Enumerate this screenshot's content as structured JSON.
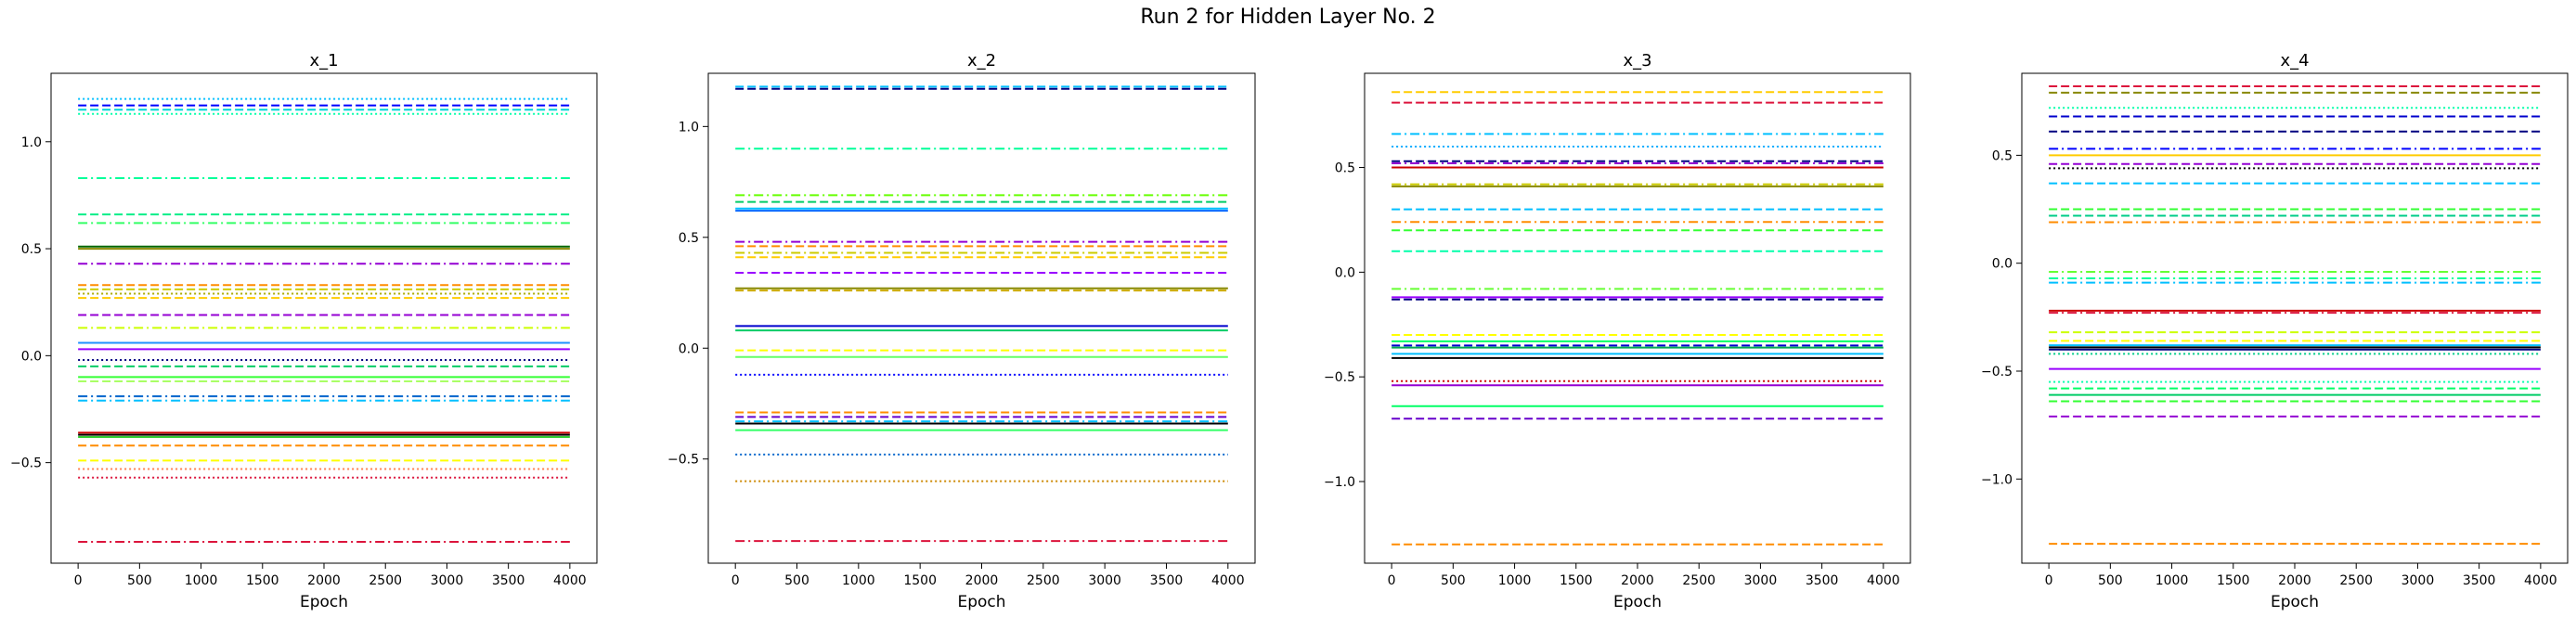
{
  "figure": {
    "title": "Run 2 for Hidden Layer No. 2"
  },
  "chart_data": [
    {
      "type": "line",
      "title": "x_1",
      "xlabel": "Epoch",
      "ylabel": "",
      "xlim": [
        -220,
        4220
      ],
      "ylim": [
        -0.97,
        1.32
      ],
      "xticks": [
        0,
        500,
        1000,
        1500,
        2000,
        2500,
        3000,
        3500,
        4000
      ],
      "yticks": [
        -0.5,
        0.0,
        0.5,
        1.0
      ],
      "ytick_labels": [
        "−0.5",
        "0.0",
        "0.5",
        "1.0"
      ],
      "x_range": [
        0,
        4000
      ],
      "grid": false,
      "series": [
        {
          "value": 1.2,
          "color": "#00bfff",
          "style": "dotted"
        },
        {
          "value": 1.17,
          "color": "#0000ff",
          "style": "dashed"
        },
        {
          "value": 1.15,
          "color": "#00d5d5",
          "style": "dashed"
        },
        {
          "value": 1.13,
          "color": "#00ffaa",
          "style": "dotted"
        },
        {
          "value": 0.83,
          "color": "#00ff99",
          "style": "dashdot"
        },
        {
          "value": 0.66,
          "color": "#00ee88",
          "style": "dashed"
        },
        {
          "value": 0.62,
          "color": "#33ff66",
          "style": "dashdot"
        },
        {
          "value": 0.51,
          "color": "#006600",
          "style": "solid"
        },
        {
          "value": 0.5,
          "color": "#888800",
          "style": "solid"
        },
        {
          "value": 0.43,
          "color": "#9400d3",
          "style": "dashdot"
        },
        {
          "value": 0.33,
          "color": "#ff8c00",
          "style": "dashed"
        },
        {
          "value": 0.31,
          "color": "#cccc00",
          "style": "dashed"
        },
        {
          "value": 0.29,
          "color": "#aaaa00",
          "style": "dotted"
        },
        {
          "value": 0.27,
          "color": "#ffcc00",
          "style": "dashed"
        },
        {
          "value": 0.19,
          "color": "#9400d3",
          "style": "dashed"
        },
        {
          "value": 0.13,
          "color": "#ccff00",
          "style": "dashdot"
        },
        {
          "value": 0.06,
          "color": "#1e90ff",
          "style": "solid"
        },
        {
          "value": 0.03,
          "color": "#9900ff",
          "style": "solid"
        },
        {
          "value": -0.02,
          "color": "#000080",
          "style": "dotted"
        },
        {
          "value": -0.05,
          "color": "#00cc66",
          "style": "dashed"
        },
        {
          "value": -0.1,
          "color": "#33ff33",
          "style": "solid"
        },
        {
          "value": -0.12,
          "color": "#aaff66",
          "style": "dashed"
        },
        {
          "value": -0.19,
          "color": "#0066cc",
          "style": "dashdot"
        },
        {
          "value": -0.21,
          "color": "#00bfff",
          "style": "dashdot"
        },
        {
          "value": -0.36,
          "color": "#cc0000",
          "style": "solid"
        },
        {
          "value": -0.37,
          "color": "#000000",
          "style": "solid"
        },
        {
          "value": -0.38,
          "color": "#33cc33",
          "style": "solid"
        },
        {
          "value": -0.42,
          "color": "#ff8c00",
          "style": "dashed"
        },
        {
          "value": -0.49,
          "color": "#ffff00",
          "style": "dashed"
        },
        {
          "value": -0.53,
          "color": "#ff7f50",
          "style": "dotted"
        },
        {
          "value": -0.57,
          "color": "#dc143c",
          "style": "dotted"
        },
        {
          "value": -0.87,
          "color": "#dc143c",
          "style": "dashdot"
        }
      ]
    },
    {
      "type": "line",
      "title": "x_2",
      "xlabel": "Epoch",
      "ylabel": "",
      "xlim": [
        -220,
        4220
      ],
      "ylim": [
        -0.97,
        1.24
      ],
      "xticks": [
        0,
        500,
        1000,
        1500,
        2000,
        2500,
        3000,
        3500,
        4000
      ],
      "yticks": [
        -0.5,
        0.0,
        0.5,
        1.0
      ],
      "ytick_labels": [
        "−0.5",
        "0.0",
        "0.5",
        "1.0"
      ],
      "x_range": [
        0,
        4000
      ],
      "grid": false,
      "series": [
        {
          "value": 1.18,
          "color": "#00bfff",
          "style": "dashed"
        },
        {
          "value": 1.17,
          "color": "#000080",
          "style": "dashed"
        },
        {
          "value": 0.9,
          "color": "#00ff99",
          "style": "dashdot"
        },
        {
          "value": 0.69,
          "color": "#66ff00",
          "style": "dashdot"
        },
        {
          "value": 0.66,
          "color": "#00cc66",
          "style": "dashed"
        },
        {
          "value": 0.63,
          "color": "#00bfff",
          "style": "solid"
        },
        {
          "value": 0.62,
          "color": "#0066ff",
          "style": "solid"
        },
        {
          "value": 0.48,
          "color": "#9400d3",
          "style": "dashdot"
        },
        {
          "value": 0.46,
          "color": "#ff8c00",
          "style": "dashed"
        },
        {
          "value": 0.43,
          "color": "#cccc00",
          "style": "dashdot"
        },
        {
          "value": 0.41,
          "color": "#ffcc00",
          "style": "dashed"
        },
        {
          "value": 0.34,
          "color": "#9900ff",
          "style": "dashed"
        },
        {
          "value": 0.27,
          "color": "#888800",
          "style": "solid"
        },
        {
          "value": 0.26,
          "color": "#ccaa00",
          "style": "dashed"
        },
        {
          "value": 0.1,
          "color": "#0000cd",
          "style": "solid"
        },
        {
          "value": 0.08,
          "color": "#00cc66",
          "style": "solid"
        },
        {
          "value": -0.01,
          "color": "#ffff00",
          "style": "dashed"
        },
        {
          "value": -0.04,
          "color": "#66ff66",
          "style": "solid"
        },
        {
          "value": -0.12,
          "color": "#0000ff",
          "style": "dotted"
        },
        {
          "value": -0.29,
          "color": "#ff8c00",
          "style": "dashed"
        },
        {
          "value": -0.31,
          "color": "#6600cc",
          "style": "dashed"
        },
        {
          "value": -0.33,
          "color": "#00bfff",
          "style": "dashdot"
        },
        {
          "value": -0.34,
          "color": "#000000",
          "style": "solid"
        },
        {
          "value": -0.37,
          "color": "#33ff66",
          "style": "solid"
        },
        {
          "value": -0.48,
          "color": "#0066cc",
          "style": "dotted"
        },
        {
          "value": -0.6,
          "color": "#cc8800",
          "style": "dotted"
        },
        {
          "value": -0.87,
          "color": "#dc143c",
          "style": "dashdot"
        }
      ]
    },
    {
      "type": "line",
      "title": "x_3",
      "xlabel": "Epoch",
      "ylabel": "",
      "xlim": [
        -220,
        4220
      ],
      "ylim": [
        -1.39,
        0.95
      ],
      "xticks": [
        0,
        500,
        1000,
        1500,
        2000,
        2500,
        3000,
        3500,
        4000
      ],
      "yticks": [
        -1.0,
        -0.5,
        0.0,
        0.5
      ],
      "ytick_labels": [
        "−1.0",
        "−0.5",
        "0.0",
        "0.5"
      ],
      "x_range": [
        0,
        4000
      ],
      "grid": false,
      "series": [
        {
          "value": 0.86,
          "color": "#ffcc00",
          "style": "dashed"
        },
        {
          "value": 0.81,
          "color": "#dc143c",
          "style": "dashed"
        },
        {
          "value": 0.66,
          "color": "#00bfff",
          "style": "dashdot"
        },
        {
          "value": 0.6,
          "color": "#00aaff",
          "style": "dotted"
        },
        {
          "value": 0.53,
          "color": "#000080",
          "style": "dashed"
        },
        {
          "value": 0.52,
          "color": "#9400d3",
          "style": "dashdot"
        },
        {
          "value": 0.5,
          "color": "#cc0000",
          "style": "solid"
        },
        {
          "value": 0.42,
          "color": "#cccc00",
          "style": "dashdot"
        },
        {
          "value": 0.41,
          "color": "#888800",
          "style": "solid"
        },
        {
          "value": 0.3,
          "color": "#00bfff",
          "style": "dashed"
        },
        {
          "value": 0.24,
          "color": "#ff8c00",
          "style": "dashdot"
        },
        {
          "value": 0.2,
          "color": "#33ff33",
          "style": "dashed"
        },
        {
          "value": 0.1,
          "color": "#00ffaa",
          "style": "dashed"
        },
        {
          "value": -0.08,
          "color": "#66ff33",
          "style": "dashdot"
        },
        {
          "value": -0.12,
          "color": "#9900ff",
          "style": "solid"
        },
        {
          "value": -0.13,
          "color": "#000080",
          "style": "dashed"
        },
        {
          "value": -0.3,
          "color": "#ffff00",
          "style": "dashed"
        },
        {
          "value": -0.33,
          "color": "#00ff66",
          "style": "solid"
        },
        {
          "value": -0.35,
          "color": "#0000cd",
          "style": "dashed"
        },
        {
          "value": -0.36,
          "color": "#00aa55",
          "style": "solid"
        },
        {
          "value": -0.39,
          "color": "#00bfff",
          "style": "solid"
        },
        {
          "value": -0.41,
          "color": "#000000",
          "style": "solid"
        },
        {
          "value": -0.52,
          "color": "#cc0000",
          "style": "dotted"
        },
        {
          "value": -0.54,
          "color": "#9400d3",
          "style": "solid"
        },
        {
          "value": -0.64,
          "color": "#00ff66",
          "style": "solid"
        },
        {
          "value": -0.7,
          "color": "#6600cc",
          "style": "dashed"
        },
        {
          "value": -1.3,
          "color": "#ff8c00",
          "style": "dashed"
        }
      ]
    },
    {
      "type": "line",
      "title": "x_4",
      "xlabel": "Epoch",
      "ylabel": "",
      "xlim": [
        -220,
        4220
      ],
      "ylim": [
        -1.39,
        0.88
      ],
      "xticks": [
        0,
        500,
        1000,
        1500,
        2000,
        2500,
        3000,
        3500,
        4000
      ],
      "yticks": [
        -1.0,
        -0.5,
        0.0,
        0.5
      ],
      "ytick_labels": [
        "−1.0",
        "−0.5",
        "0.0",
        "0.5"
      ],
      "x_range": [
        0,
        4000
      ],
      "grid": false,
      "series": [
        {
          "value": 0.82,
          "color": "#dc143c",
          "style": "dashed"
        },
        {
          "value": 0.79,
          "color": "#888800",
          "style": "dashed"
        },
        {
          "value": 0.72,
          "color": "#00ffaa",
          "style": "dotted"
        },
        {
          "value": 0.68,
          "color": "#0000cd",
          "style": "dashed"
        },
        {
          "value": 0.61,
          "color": "#000080",
          "style": "dashed"
        },
        {
          "value": 0.53,
          "color": "#0000ff",
          "style": "dashdot"
        },
        {
          "value": 0.5,
          "color": "#ffcc00",
          "style": "solid"
        },
        {
          "value": 0.46,
          "color": "#9400d3",
          "style": "dashed"
        },
        {
          "value": 0.44,
          "color": "#000000",
          "style": "dotted"
        },
        {
          "value": 0.37,
          "color": "#00bfff",
          "style": "dashed"
        },
        {
          "value": 0.25,
          "color": "#33ff33",
          "style": "dashed"
        },
        {
          "value": 0.22,
          "color": "#00cc88",
          "style": "dashed"
        },
        {
          "value": 0.19,
          "color": "#ff8c00",
          "style": "dashdot"
        },
        {
          "value": -0.04,
          "color": "#66ff33",
          "style": "dashdot"
        },
        {
          "value": -0.07,
          "color": "#00ff99",
          "style": "dashdot"
        },
        {
          "value": -0.09,
          "color": "#00bfff",
          "style": "dashdot"
        },
        {
          "value": -0.22,
          "color": "#cc0000",
          "style": "solid"
        },
        {
          "value": -0.23,
          "color": "#dc143c",
          "style": "dashdot"
        },
        {
          "value": -0.32,
          "color": "#ccff00",
          "style": "dashed"
        },
        {
          "value": -0.36,
          "color": "#ffff00",
          "style": "dashed"
        },
        {
          "value": -0.38,
          "color": "#00bfff",
          "style": "solid"
        },
        {
          "value": -0.39,
          "color": "#000000",
          "style": "solid"
        },
        {
          "value": -0.4,
          "color": "#000080",
          "style": "solid"
        },
        {
          "value": -0.42,
          "color": "#00cc88",
          "style": "dotted"
        },
        {
          "value": -0.49,
          "color": "#9900ff",
          "style": "solid"
        },
        {
          "value": -0.55,
          "color": "#00ffaa",
          "style": "dotted"
        },
        {
          "value": -0.58,
          "color": "#00ff66",
          "style": "dashed"
        },
        {
          "value": -0.61,
          "color": "#00cc66",
          "style": "solid"
        },
        {
          "value": -0.64,
          "color": "#33ff33",
          "style": "dashed"
        },
        {
          "value": -0.71,
          "color": "#9400d3",
          "style": "dashed"
        },
        {
          "value": -1.3,
          "color": "#ff8c00",
          "style": "dashed"
        }
      ]
    }
  ]
}
